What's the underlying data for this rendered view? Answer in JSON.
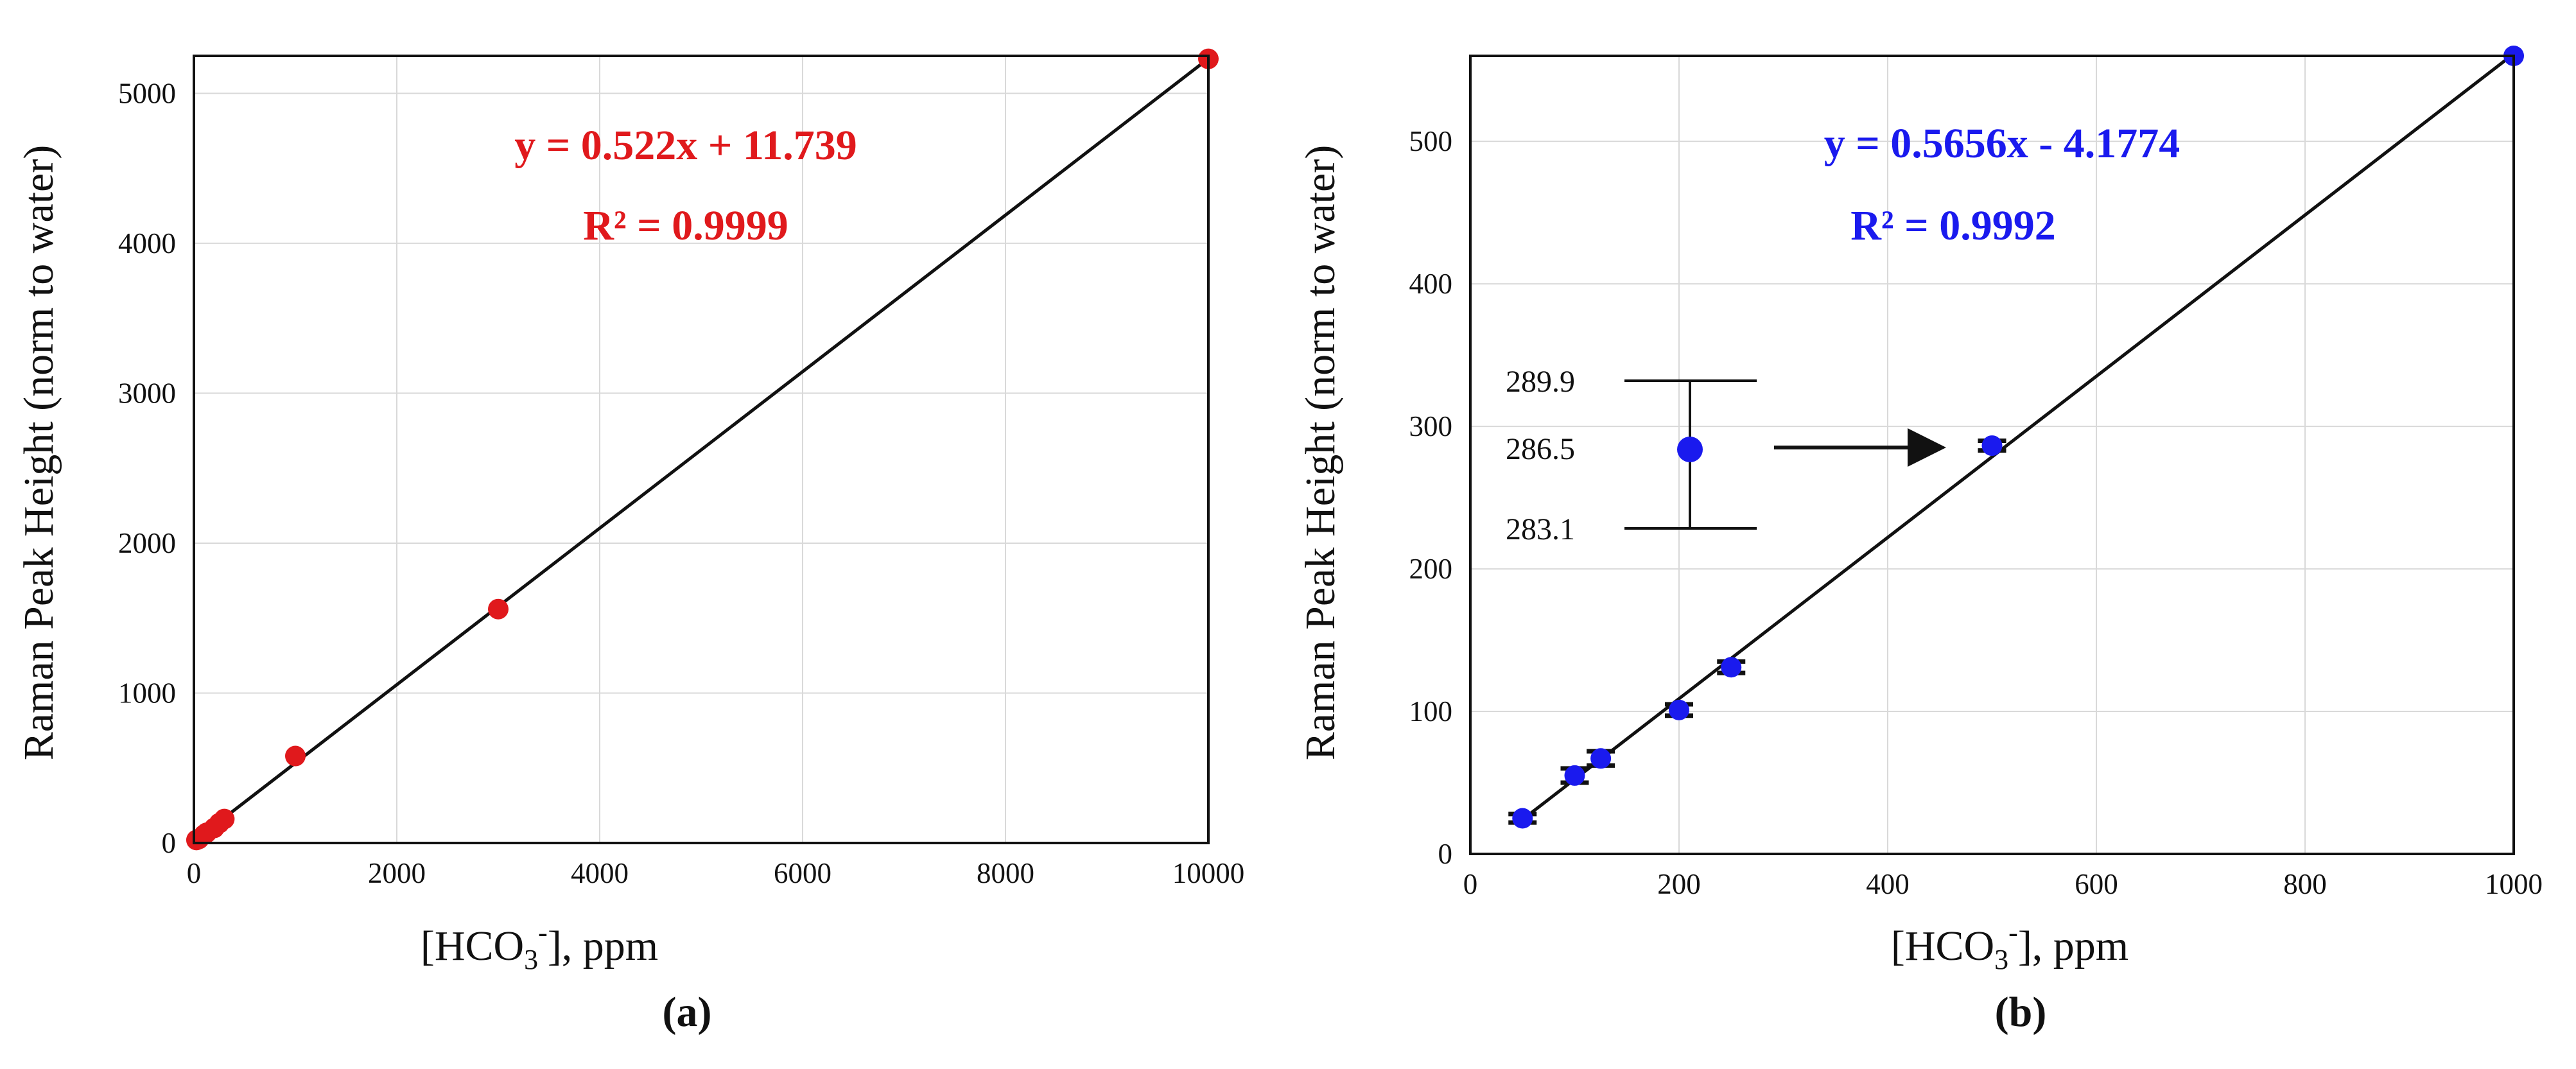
{
  "chart_data": [
    {
      "type": "scatter",
      "panel_label": "(a)",
      "xlabel": {
        "base": "[HCO",
        "subscript": "3",
        "superscript": "-",
        "tail": "], ppm"
      },
      "ylabel": "Raman Peak Height (norm to water)",
      "xlim": [
        0,
        10000
      ],
      "ylim": [
        0,
        5250
      ],
      "x_ticks": [
        0,
        2000,
        4000,
        6000,
        8000,
        10000
      ],
      "y_ticks": [
        0,
        1000,
        2000,
        3000,
        4000,
        5000
      ],
      "grid": true,
      "point_color": "#e0191c",
      "equation": "y = 0.522x + 11.739",
      "r_squared": "R² = 0.9999",
      "equation_color": "#e0191c",
      "trendline": {
        "slope": 0.522,
        "intercept": 11.739
      },
      "points": [
        {
          "x": 25,
          "y": 20
        },
        {
          "x": 50,
          "y": 27
        },
        {
          "x": 100,
          "y": 55
        },
        {
          "x": 125,
          "y": 68
        },
        {
          "x": 200,
          "y": 100
        },
        {
          "x": 250,
          "y": 132
        },
        {
          "x": 300,
          "y": 160
        },
        {
          "x": 1000,
          "y": 580
        },
        {
          "x": 3000,
          "y": 1560
        },
        {
          "x": 10000,
          "y": 5230
        }
      ]
    },
    {
      "type": "scatter",
      "panel_label": "(b)",
      "xlabel": {
        "base": "[HCO",
        "subscript": "3",
        "superscript": "-",
        "tail": "], ppm"
      },
      "ylabel": "Raman Peak Height (norm to water)",
      "xlim": [
        0,
        1000
      ],
      "ylim": [
        0,
        560
      ],
      "x_ticks": [
        0,
        200,
        400,
        600,
        800,
        1000
      ],
      "y_ticks": [
        0,
        100,
        200,
        300,
        400,
        500
      ],
      "grid": true,
      "point_color": "#1a1aee",
      "equation": "y = 0.5656x - 4.1774",
      "r_squared": "R² = 0.9992",
      "equation_color": "#1a1aee",
      "trendline": {
        "slope": 0.5656,
        "intercept": -4.1774
      },
      "points": [
        {
          "x": 50,
          "y": 25,
          "err": 3
        },
        {
          "x": 100,
          "y": 55,
          "err": 5
        },
        {
          "x": 125,
          "y": 67,
          "err": 5
        },
        {
          "x": 200,
          "y": 101,
          "err": 4
        },
        {
          "x": 250,
          "y": 131,
          "err": 4
        },
        {
          "x": 500,
          "y": 286.5,
          "err": 3.4
        },
        {
          "x": 1000,
          "y": 560,
          "err": 0
        }
      ],
      "inset": {
        "upper": "289.9",
        "mean": "286.5",
        "lower": "283.1",
        "target_x": 500,
        "target_y": 286.5
      }
    }
  ]
}
